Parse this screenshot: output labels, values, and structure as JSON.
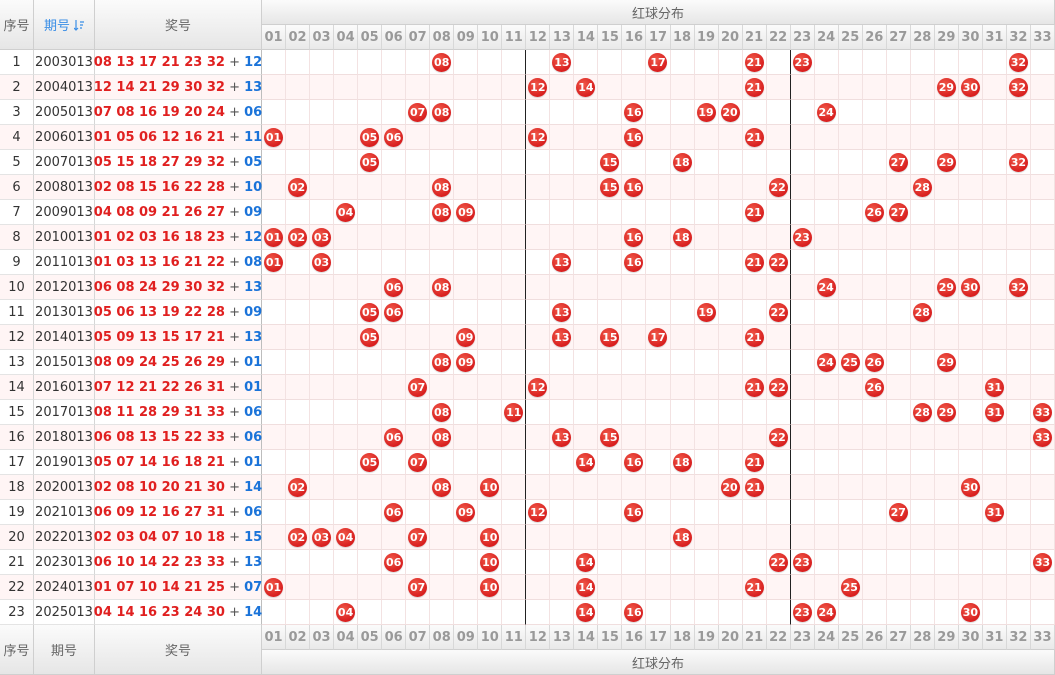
{
  "headers": {
    "seq": "序号",
    "period": "期号",
    "sort_icon": "sort-icon",
    "prize": "奖号",
    "distribution": "红球分布"
  },
  "columns": [
    "01",
    "02",
    "03",
    "04",
    "05",
    "06",
    "07",
    "08",
    "09",
    "10",
    "11",
    "12",
    "13",
    "14",
    "15",
    "16",
    "17",
    "18",
    "19",
    "20",
    "21",
    "22",
    "23",
    "24",
    "25",
    "26",
    "27",
    "28",
    "29",
    "30",
    "31",
    "32",
    "33"
  ],
  "colors": {
    "red": "#e02020",
    "blue": "#1a73d9",
    "sorted_header": "#3a8ee6"
  },
  "rows": [
    {
      "seq": "1",
      "period": "2003013",
      "reds": "08 13 17 21 23 32",
      "blue": "12"
    },
    {
      "seq": "2",
      "period": "2004013",
      "reds": "12 14 21 29 30 32",
      "blue": "13"
    },
    {
      "seq": "3",
      "period": "2005013",
      "reds": "07 08 16 19 20 24",
      "blue": "06"
    },
    {
      "seq": "4",
      "period": "2006013",
      "reds": "01 05 06 12 16 21",
      "blue": "11"
    },
    {
      "seq": "5",
      "period": "2007013",
      "reds": "05 15 18 27 29 32",
      "blue": "05"
    },
    {
      "seq": "6",
      "period": "2008013",
      "reds": "02 08 15 16 22 28",
      "blue": "10"
    },
    {
      "seq": "7",
      "period": "2009013",
      "reds": "04 08 09 21 26 27",
      "blue": "09"
    },
    {
      "seq": "8",
      "period": "2010013",
      "reds": "01 02 03 16 18 23",
      "blue": "12"
    },
    {
      "seq": "9",
      "period": "2011013",
      "reds": "01 03 13 16 21 22",
      "blue": "08"
    },
    {
      "seq": "10",
      "period": "2012013",
      "reds": "06 08 24 29 30 32",
      "blue": "13"
    },
    {
      "seq": "11",
      "period": "2013013",
      "reds": "05 06 13 19 22 28",
      "blue": "09"
    },
    {
      "seq": "12",
      "period": "2014013",
      "reds": "05 09 13 15 17 21",
      "blue": "13"
    },
    {
      "seq": "13",
      "period": "2015013",
      "reds": "08 09 24 25 26 29",
      "blue": "01"
    },
    {
      "seq": "14",
      "period": "2016013",
      "reds": "07 12 21 22 26 31",
      "blue": "01"
    },
    {
      "seq": "15",
      "period": "2017013",
      "reds": "08 11 28 29 31 33",
      "blue": "06"
    },
    {
      "seq": "16",
      "period": "2018013",
      "reds": "06 08 13 15 22 33",
      "blue": "06"
    },
    {
      "seq": "17",
      "period": "2019013",
      "reds": "05 07 14 16 18 21",
      "blue": "01"
    },
    {
      "seq": "18",
      "period": "2020013",
      "reds": "02 08 10 20 21 30",
      "blue": "14"
    },
    {
      "seq": "19",
      "period": "2021013",
      "reds": "06 09 12 16 27 31",
      "blue": "06"
    },
    {
      "seq": "20",
      "period": "2022013",
      "reds": "02 03 04 07 10 18",
      "blue": "15"
    },
    {
      "seq": "21",
      "period": "2023013",
      "reds": "06 10 14 22 23 33",
      "blue": "13"
    },
    {
      "seq": "22",
      "period": "2024013",
      "reds": "01 07 10 14 21 25",
      "blue": "07"
    },
    {
      "seq": "23",
      "period": "2025013",
      "reds": "04 14 16 23 24 30",
      "blue": "14"
    }
  ]
}
